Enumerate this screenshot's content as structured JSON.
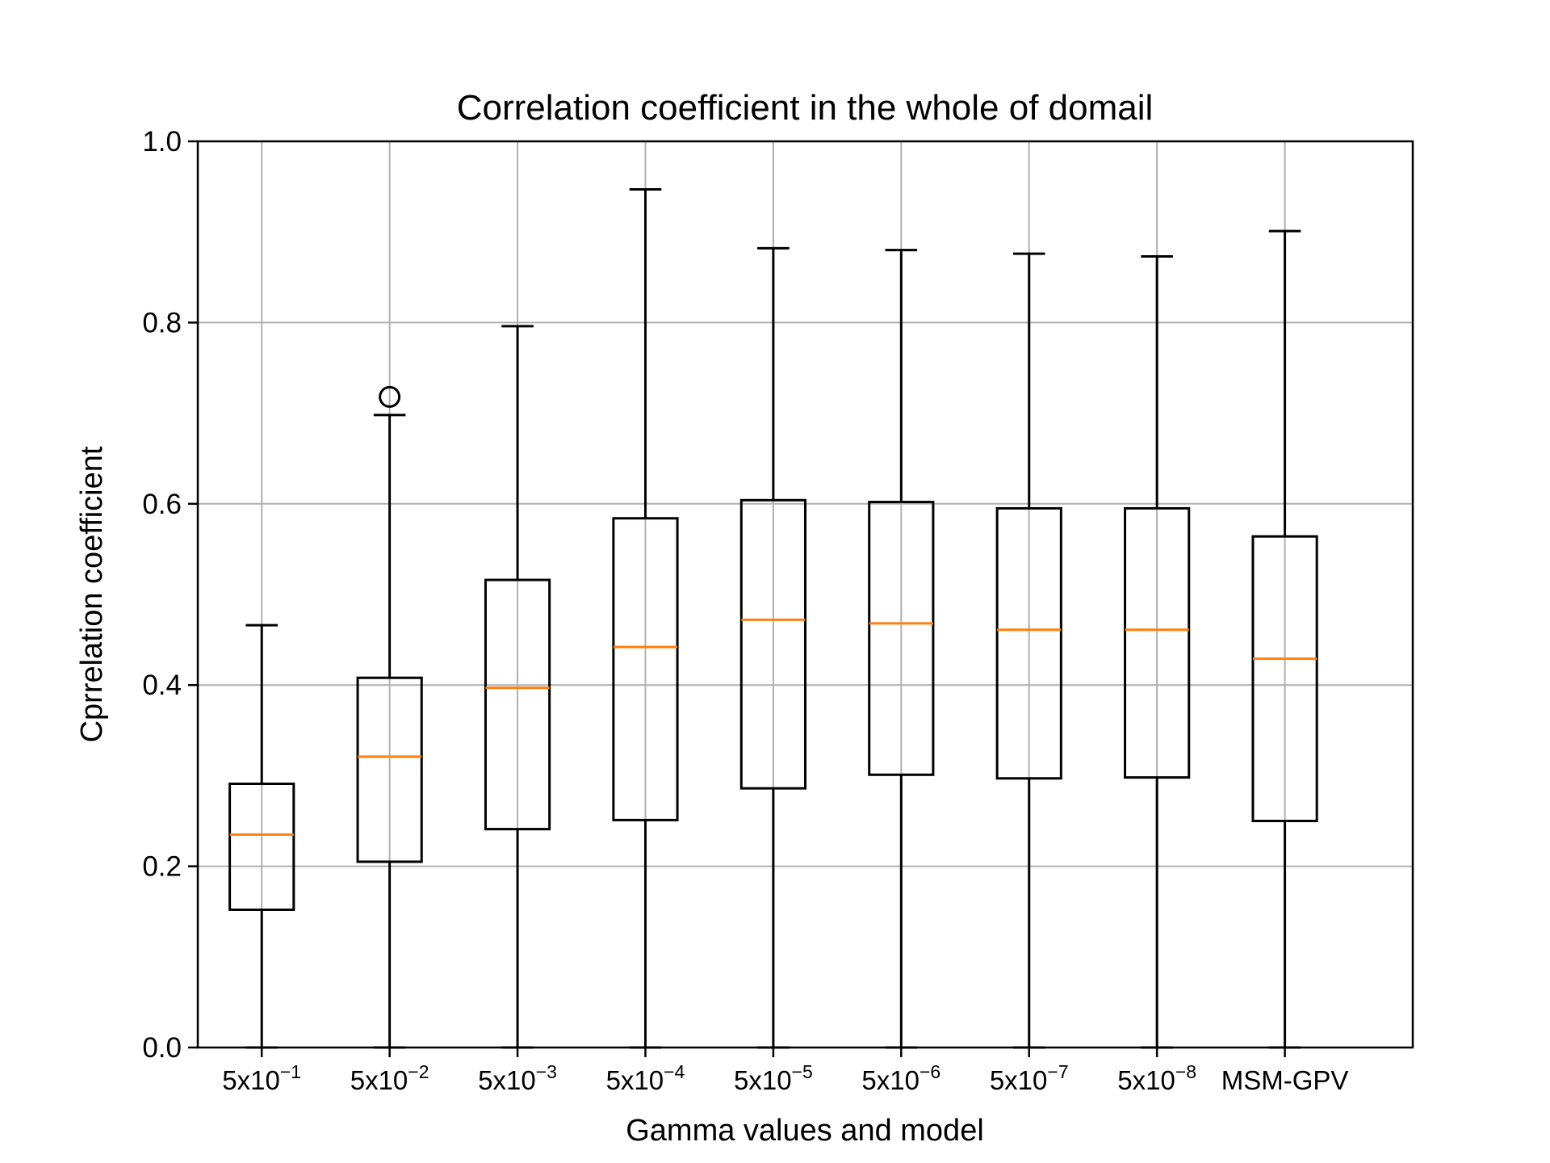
{
  "chart_data": {
    "type": "boxplot",
    "title": "Correlation coefficient in the whole of domail",
    "xlabel": "Gamma values and model",
    "ylabel": "Cprrelation coefficient",
    "ylim": [
      0.0,
      1.0
    ],
    "yticks": [
      "0.0",
      "0.2",
      "0.4",
      "0.6",
      "0.8",
      "1.0"
    ],
    "grid": true,
    "categories": [
      {
        "base": "5x10",
        "exp": "−1"
      },
      {
        "base": "5x10",
        "exp": "−2"
      },
      {
        "base": "5x10",
        "exp": "−3"
      },
      {
        "base": "5x10",
        "exp": "−4"
      },
      {
        "base": "5x10",
        "exp": "−5"
      },
      {
        "base": "5x10",
        "exp": "−6"
      },
      {
        "base": "5x10",
        "exp": "−7"
      },
      {
        "base": "5x10",
        "exp": "−8"
      },
      {
        "base": "MSM-GPV",
        "exp": ""
      }
    ],
    "boxes": [
      {
        "whislo": 0.0,
        "q1": 0.152,
        "med": 0.235,
        "q3": 0.291,
        "whishi": 0.466,
        "fliers": []
      },
      {
        "whislo": 0.0,
        "q1": 0.205,
        "med": 0.321,
        "q3": 0.408,
        "whishi": 0.698,
        "fliers": [
          0.718
        ]
      },
      {
        "whislo": 0.0,
        "q1": 0.241,
        "med": 0.397,
        "q3": 0.516,
        "whishi": 0.796,
        "fliers": []
      },
      {
        "whislo": 0.0,
        "q1": 0.251,
        "med": 0.442,
        "q3": 0.584,
        "whishi": 0.947,
        "fliers": []
      },
      {
        "whislo": 0.0,
        "q1": 0.286,
        "med": 0.472,
        "q3": 0.604,
        "whishi": 0.882,
        "fliers": []
      },
      {
        "whislo": 0.0,
        "q1": 0.301,
        "med": 0.468,
        "q3": 0.602,
        "whishi": 0.88,
        "fliers": []
      },
      {
        "whislo": 0.0,
        "q1": 0.297,
        "med": 0.461,
        "q3": 0.595,
        "whishi": 0.876,
        "fliers": []
      },
      {
        "whislo": 0.0,
        "q1": 0.298,
        "med": 0.461,
        "q3": 0.595,
        "whishi": 0.873,
        "fliers": []
      },
      {
        "whislo": 0.0,
        "q1": 0.25,
        "med": 0.429,
        "q3": 0.564,
        "whishi": 0.901,
        "fliers": []
      }
    ],
    "colors": {
      "box": "#000000",
      "median": "#ff7f0e",
      "grid": "#b0b0b0"
    }
  }
}
